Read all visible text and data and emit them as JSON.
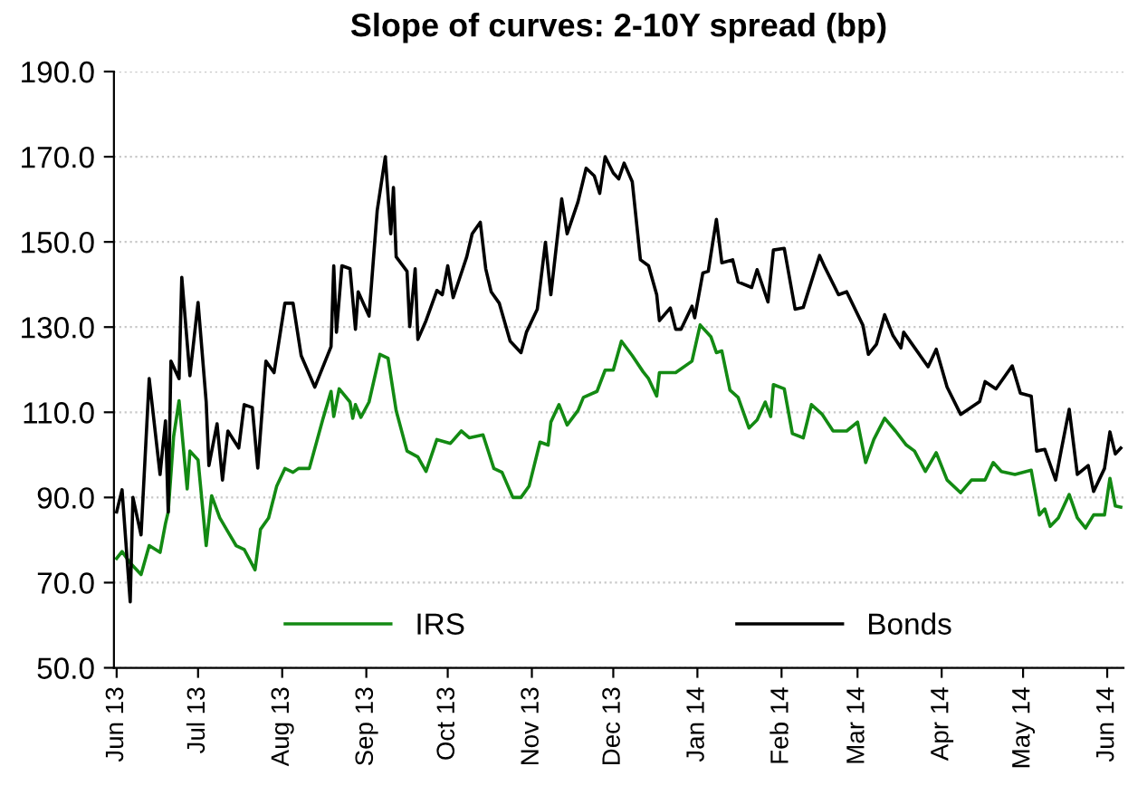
{
  "chart_data": {
    "type": "line",
    "title": "Slope of curves: 2-10Y spread (bp)",
    "series": [
      {
        "name": "IRS",
        "color": "#138a13",
        "x": [
          "2013-06-01",
          "2013-06-03",
          "2013-06-06",
          "2013-06-10",
          "2013-06-13",
          "2013-06-17",
          "2013-06-19",
          "2013-06-20",
          "2013-06-22",
          "2013-06-24",
          "2013-06-27",
          "2013-06-28",
          "2013-07-01",
          "2013-07-04",
          "2013-07-06",
          "2013-07-09",
          "2013-07-15",
          "2013-07-18",
          "2013-07-22",
          "2013-07-24",
          "2013-07-27",
          "2013-07-30",
          "2013-08-02",
          "2013-08-05",
          "2013-08-07",
          "2013-08-11",
          "2013-08-16",
          "2013-08-19",
          "2013-08-20",
          "2013-08-22",
          "2013-08-26",
          "2013-08-27",
          "2013-08-28",
          "2013-08-30",
          "2013-09-02",
          "2013-09-06",
          "2013-09-09",
          "2013-09-12",
          "2013-09-16",
          "2013-09-18",
          "2013-09-20",
          "2013-09-23",
          "2013-09-27",
          "2013-10-02",
          "2013-10-06",
          "2013-10-09",
          "2013-10-14",
          "2013-10-18",
          "2013-10-21",
          "2013-10-25",
          "2013-10-28",
          "2013-10-31",
          "2013-11-04",
          "2013-11-07",
          "2013-11-08",
          "2013-11-11",
          "2013-11-14",
          "2013-11-18",
          "2013-11-20",
          "2013-11-25",
          "2013-11-28",
          "2013-12-01",
          "2013-12-04",
          "2013-12-08",
          "2013-12-12",
          "2013-12-14",
          "2013-12-17",
          "2013-12-18",
          "2013-12-24",
          "2013-12-30",
          "2014-01-02",
          "2014-01-06",
          "2014-01-08",
          "2014-01-10",
          "2014-01-13",
          "2014-01-16",
          "2014-01-20",
          "2014-01-23",
          "2014-01-26",
          "2014-01-28",
          "2014-01-29",
          "2014-02-02",
          "2014-02-05",
          "2014-02-09",
          "2014-02-12",
          "2014-02-16",
          "2014-02-20",
          "2014-02-25",
          "2014-03-01",
          "2014-03-04",
          "2014-03-07",
          "2014-03-11",
          "2014-03-15",
          "2014-03-19",
          "2014-03-22",
          "2014-03-26",
          "2014-03-30",
          "2014-04-03",
          "2014-04-08",
          "2014-04-12",
          "2014-04-17",
          "2014-04-20",
          "2014-04-23",
          "2014-04-28",
          "2014-05-04",
          "2014-05-07",
          "2014-05-09",
          "2014-05-11",
          "2014-05-14",
          "2014-05-18",
          "2014-05-21",
          "2014-05-24",
          "2014-05-27",
          "2014-05-31",
          "2014-06-02",
          "2014-06-04",
          "2014-06-06"
        ],
        "values": [
          75.7,
          77.3,
          74.6,
          71.9,
          78.7,
          77.1,
          83.9,
          86.6,
          104.3,
          112.7,
          92,
          100.9,
          98.8,
          78.7,
          90.4,
          85.2,
          78.7,
          77.8,
          73,
          82.5,
          85.2,
          92.7,
          96.8,
          95.9,
          96.8,
          96.8,
          108.4,
          114.9,
          109,
          115.5,
          112.4,
          108.6,
          111.8,
          108.8,
          112.4,
          123.6,
          122.7,
          110.4,
          100.9,
          100.2,
          99.5,
          96.1,
          103.6,
          102.7,
          105.6,
          104,
          104.7,
          96.8,
          95.9,
          90,
          90,
          92.7,
          103,
          102.3,
          107.7,
          111.8,
          107,
          110.4,
          113.5,
          114.9,
          119.9,
          119.9,
          126.7,
          123.3,
          119.5,
          117.9,
          113.8,
          119.3,
          119.3,
          122,
          130.5,
          127.7,
          124,
          124.4,
          115.2,
          113.5,
          106.3,
          108.2,
          112.4,
          109,
          116.5,
          115.5,
          105,
          104,
          111.8,
          109.5,
          105.6,
          105.6,
          107.7,
          98.2,
          103.6,
          108.6,
          105.6,
          102.3,
          100.9,
          96.1,
          100.5,
          94.1,
          91.1,
          94.1,
          94.1,
          98.2,
          96.1,
          95.4,
          96.4,
          85.9,
          87.3,
          83.2,
          85.2,
          90.7,
          85.2,
          82.8,
          85.9,
          85.9,
          94.5,
          88,
          87.7
        ]
      },
      {
        "name": "Bonds",
        "color": "#000000",
        "x": [
          "2013-06-01",
          "2013-06-03",
          "2013-06-06",
          "2013-06-07",
          "2013-06-10",
          "2013-06-13",
          "2013-06-17",
          "2013-06-19",
          "2013-06-20",
          "2013-06-21",
          "2013-06-24",
          "2013-06-25",
          "2013-06-28",
          "2013-07-01",
          "2013-07-04",
          "2013-07-05",
          "2013-07-08",
          "2013-07-10",
          "2013-07-12",
          "2013-07-16",
          "2013-07-18",
          "2013-07-21",
          "2013-07-23",
          "2013-07-26",
          "2013-07-29",
          "2013-08-02",
          "2013-08-05",
          "2013-08-08",
          "2013-08-13",
          "2013-08-19",
          "2013-08-20",
          "2013-08-21",
          "2013-08-23",
          "2013-08-26",
          "2013-08-28",
          "2013-08-29",
          "2013-09-02",
          "2013-09-05",
          "2013-09-08",
          "2013-09-10",
          "2013-09-11",
          "2013-09-12",
          "2013-09-16",
          "2013-09-17",
          "2013-09-19",
          "2013-09-20",
          "2013-09-23",
          "2013-09-27",
          "2013-09-29",
          "2013-10-01",
          "2013-10-03",
          "2013-10-08",
          "2013-10-10",
          "2013-10-13",
          "2013-10-15",
          "2013-10-17",
          "2013-10-20",
          "2013-10-24",
          "2013-10-28",
          "2013-10-30",
          "2013-11-03",
          "2013-11-06",
          "2013-11-08",
          "2013-11-12",
          "2013-11-14",
          "2013-11-18",
          "2013-11-21",
          "2013-11-24",
          "2013-11-26",
          "2013-11-28",
          "2013-12-01",
          "2013-12-03",
          "2013-12-05",
          "2013-12-08",
          "2013-12-11",
          "2013-12-14",
          "2013-12-17",
          "2013-12-18",
          "2013-12-22",
          "2013-12-24",
          "2013-12-26",
          "2013-12-30",
          "2013-12-31",
          "2014-01-03",
          "2014-01-05",
          "2014-01-08",
          "2014-01-10",
          "2014-01-14",
          "2014-01-16",
          "2014-01-21",
          "2014-01-23",
          "2014-01-27",
          "2014-01-29",
          "2014-02-02",
          "2014-02-06",
          "2014-02-09",
          "2014-02-15",
          "2014-02-17",
          "2014-02-22",
          "2014-02-25",
          "2014-03-03",
          "2014-03-05",
          "2014-03-08",
          "2014-03-11",
          "2014-03-14",
          "2014-03-17",
          "2014-03-18",
          "2014-03-27",
          "2014-03-30",
          "2014-04-03",
          "2014-04-08",
          "2014-04-15",
          "2014-04-17",
          "2014-04-21",
          "2014-04-27",
          "2014-04-30",
          "2014-05-04",
          "2014-05-06",
          "2014-05-09",
          "2014-05-13",
          "2014-05-15",
          "2014-05-18",
          "2014-05-21",
          "2014-05-25",
          "2014-05-27",
          "2014-05-31",
          "2014-06-02",
          "2014-06-04",
          "2014-06-06"
        ],
        "values": [
          86.6,
          91.8,
          65.5,
          90,
          81.2,
          117.9,
          95.4,
          108,
          86.6,
          122,
          117.9,
          141.7,
          118.6,
          135.8,
          112.4,
          97.5,
          107.3,
          94.1,
          105.6,
          101.6,
          111.8,
          111.1,
          96.9,
          122,
          119.3,
          135.6,
          135.6,
          123.3,
          115.9,
          125.4,
          144.4,
          128.8,
          144.4,
          143.7,
          129.5,
          138.3,
          132.6,
          157.3,
          170,
          151.9,
          162.8,
          146.5,
          143.1,
          130.1,
          143.7,
          127.1,
          131.5,
          138.6,
          137.6,
          144.4,
          136.9,
          146.5,
          151.9,
          154.6,
          143.7,
          138.3,
          135.6,
          126.7,
          124,
          128.8,
          134.2,
          149.9,
          137.6,
          160.1,
          151.9,
          159.4,
          167.3,
          165.5,
          161.4,
          170,
          166.2,
          164.8,
          168.5,
          164.1,
          145.8,
          144.4,
          137.6,
          131.5,
          134.5,
          129.5,
          129.5,
          134.9,
          132.2,
          142.7,
          143.1,
          155.3,
          145.1,
          145.8,
          140.6,
          139.3,
          143.5,
          135.9,
          148.1,
          148.5,
          134.2,
          134.6,
          146.8,
          144,
          137.6,
          138.3,
          130.4,
          123.6,
          126,
          132.9,
          128.1,
          125.1,
          128.8,
          120.7,
          124.8,
          115.9,
          109.5,
          112.5,
          117.2,
          115.5,
          120.9,
          114.5,
          113.8,
          100.9,
          101.3,
          94.1,
          100.9,
          110.7,
          95.4,
          97.5,
          91.4,
          96.8,
          105.4,
          100.2,
          101.6
        ]
      }
    ],
    "xlim": [
      "2013-05-31",
      "2014-06-07"
    ],
    "xticks": [
      {
        "value": "2013-06-01",
        "label": "Jun 13"
      },
      {
        "value": "2013-07-01",
        "label": "Jul 13"
      },
      {
        "value": "2013-08-01",
        "label": "Aug 13"
      },
      {
        "value": "2013-09-01",
        "label": "Sep 13"
      },
      {
        "value": "2013-10-01",
        "label": "Oct 13"
      },
      {
        "value": "2013-11-01",
        "label": "Nov 13"
      },
      {
        "value": "2013-12-01",
        "label": "Dec 13"
      },
      {
        "value": "2014-01-01",
        "label": "Jan 14"
      },
      {
        "value": "2014-02-01",
        "label": "Feb 14"
      },
      {
        "value": "2014-03-01",
        "label": "Mar 14"
      },
      {
        "value": "2014-04-01",
        "label": "Apr 14"
      },
      {
        "value": "2014-05-01",
        "label": "May 14"
      },
      {
        "value": "2014-06-01",
        "label": "Jun 14"
      }
    ],
    "ylim": [
      50,
      190
    ],
    "yticks": [
      {
        "value": 50,
        "label": "50.0"
      },
      {
        "value": 70,
        "label": "70.0"
      },
      {
        "value": 90,
        "label": "90.0"
      },
      {
        "value": 110,
        "label": "110.0"
      },
      {
        "value": 130,
        "label": "130.0"
      },
      {
        "value": 150,
        "label": "150.0"
      },
      {
        "value": 170,
        "label": "170.0"
      },
      {
        "value": 190,
        "label": "190.0"
      }
    ],
    "grid": "y",
    "legend": "bottom",
    "marker": "none",
    "line_style": "solid"
  }
}
